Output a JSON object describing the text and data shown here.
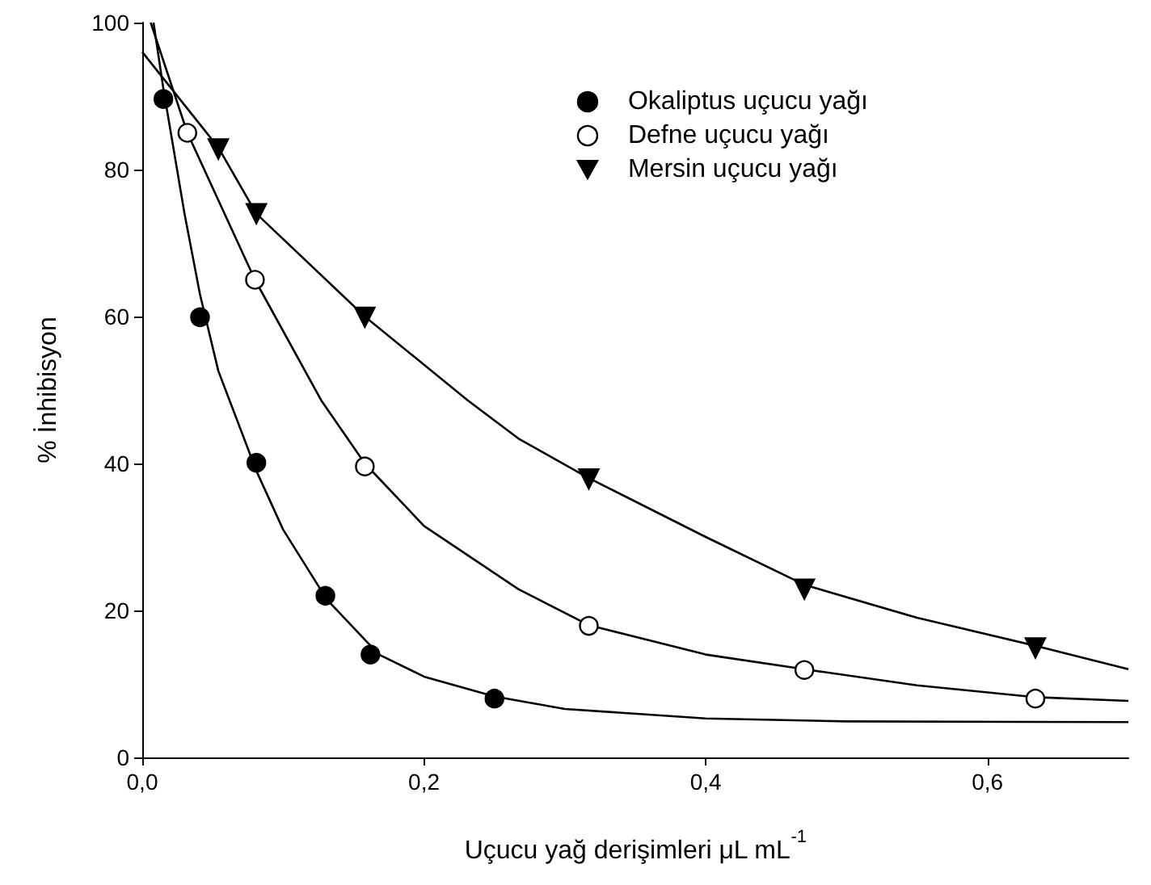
{
  "chart_data": {
    "type": "scatter",
    "xlabel": "Uçucu yağ derişimleri μL mL$^{-1}$",
    "ylabel": "% İnhibisyon",
    "xlim": [
      0,
      0.7
    ],
    "ylim": [
      0,
      100
    ],
    "xticks": [
      {
        "value": 0,
        "label": "0,0"
      },
      {
        "value": 0.2,
        "label": "0,2"
      },
      {
        "value": 0.4,
        "label": "0,4"
      },
      {
        "value": 0.6,
        "label": "0,6"
      }
    ],
    "yticks": [
      0,
      20,
      40,
      60,
      80,
      100
    ],
    "legend": "top right",
    "grid": false,
    "series": [
      {
        "name": "Okaliptus uçucu yağı",
        "color": "#000000",
        "marker": "circle",
        "x": [
          0.015,
          0.041,
          0.081,
          0.13,
          0.162,
          0.25
        ],
        "values": [
          89.6,
          59.9,
          40.1,
          22.0,
          14.0,
          8.0
        ]
      },
      {
        "name": "Defne uçucu yağı",
        "color": "#ffffff",
        "marker": "circle",
        "x": [
          0.032,
          0.08,
          0.158,
          0.317,
          0.47,
          0.634
        ],
        "values": [
          85.0,
          65.0,
          39.6,
          17.9,
          11.9,
          8.0
        ]
      },
      {
        "name": "Mersin uçucu yağı",
        "color": "#000000",
        "marker": "triangle",
        "x": [
          0.054,
          0.081,
          0.158,
          0.317,
          0.47,
          0.634
        ],
        "values": [
          82.8,
          74.0,
          59.9,
          37.9,
          22.9,
          14.9
        ]
      },
      {
        "type": "line",
        "color": "#000000",
        "marker": "none",
        "x": [
          0.008,
          0.015,
          0.03,
          0.041,
          0.054,
          0.081,
          0.1,
          0.131,
          0.168,
          0.2,
          0.25,
          0.3,
          0.4,
          0.5,
          0.7
        ],
        "values": [
          100,
          91,
          74,
          63,
          52.6,
          39,
          31,
          21.5,
          14,
          11,
          8.3,
          6.6,
          5.3,
          4.9,
          4.8
        ]
      },
      {
        "type": "line",
        "color": "#000000",
        "marker": "none",
        "x": [
          0.006,
          0.032,
          0.08,
          0.127,
          0.158,
          0.2,
          0.267,
          0.317,
          0.4,
          0.47,
          0.55,
          0.634,
          0.7
        ],
        "values": [
          100,
          85,
          65,
          48.6,
          40,
          31.5,
          22.9,
          18,
          14,
          12,
          9.8,
          8.2,
          7.7
        ]
      },
      {
        "type": "line",
        "color": "#000000",
        "marker": "none",
        "x": [
          0,
          0.054,
          0.081,
          0.158,
          0.231,
          0.267,
          0.317,
          0.4,
          0.47,
          0.55,
          0.634,
          0.7
        ],
        "values": [
          96,
          83,
          74,
          60,
          48.6,
          43.4,
          38,
          30,
          23.5,
          19,
          15.2,
          12
        ]
      }
    ]
  }
}
